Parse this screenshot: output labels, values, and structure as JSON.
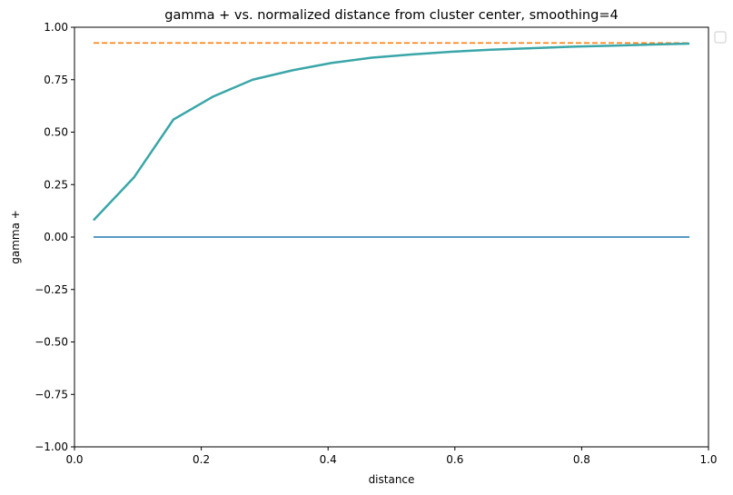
{
  "chart_data": {
    "type": "line",
    "title": "gamma + vs. normalized distance from cluster center, smoothing=4",
    "xlabel": "distance",
    "ylabel": "gamma +",
    "xlim": [
      0,
      1
    ],
    "ylim": [
      -1,
      1
    ],
    "xticks": [
      "0.0",
      "0.2",
      "0.4",
      "0.6",
      "0.8",
      "1.0"
    ],
    "yticks": [
      "1.00",
      "0.75",
      "0.50",
      "0.25",
      "0.00",
      "−0.25",
      "−0.50",
      "−0.75",
      "−1.00"
    ],
    "grid": false,
    "legend": "top-right (empty)",
    "series": [
      {
        "color": "#1f77b4",
        "style": "solid",
        "x": [
          0.03,
          0.97
        ],
        "y": [
          0.0,
          0.0
        ]
      },
      {
        "color": "#ff7f0e",
        "style": "dashed",
        "x": [
          0.03,
          0.97
        ],
        "y": [
          0.925,
          0.925
        ]
      },
      {
        "color": "#3aa6a8",
        "style": "solid",
        "x": [
          0.03,
          0.094,
          0.156,
          0.219,
          0.281,
          0.344,
          0.406,
          0.469,
          0.531,
          0.594,
          0.656,
          0.719,
          0.781,
          0.844,
          0.906,
          0.97
        ],
        "y": [
          0.08,
          0.285,
          0.56,
          0.67,
          0.75,
          0.795,
          0.83,
          0.855,
          0.87,
          0.883,
          0.893,
          0.9,
          0.907,
          0.912,
          0.917,
          0.922
        ]
      }
    ]
  }
}
